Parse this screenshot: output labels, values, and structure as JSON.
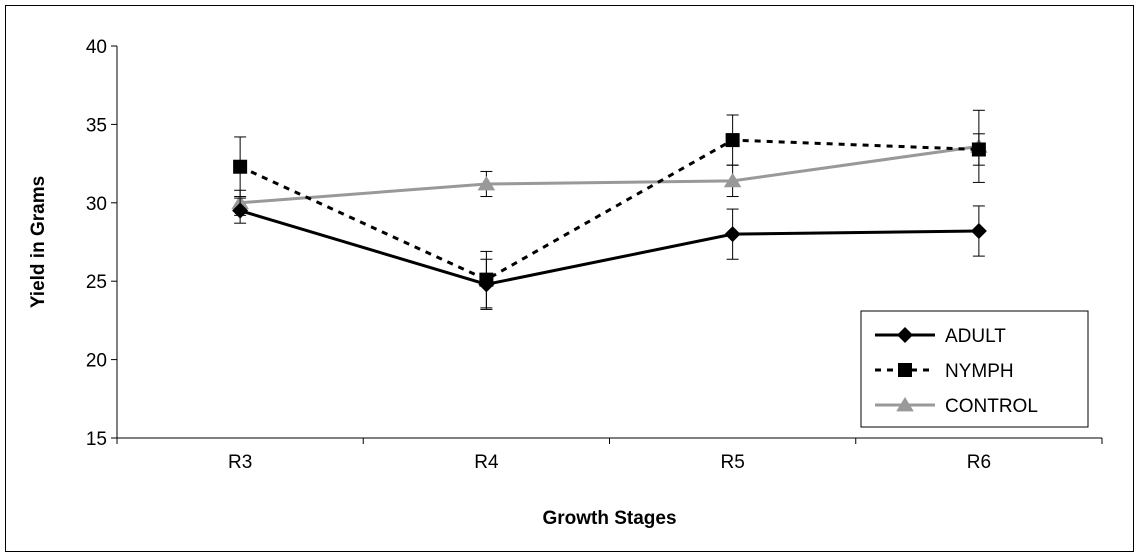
{
  "chart_data": {
    "type": "line",
    "title": "",
    "xlabel": "Growth Stages",
    "ylabel": "Yield in Grams",
    "ylim": [
      15,
      40
    ],
    "yticks": [
      15,
      20,
      25,
      30,
      35,
      40
    ],
    "grid": false,
    "legend_position": "bottom-right",
    "categories": [
      "R3",
      "R4",
      "R5",
      "R6"
    ],
    "series": [
      {
        "name": "ADULT",
        "values": [
          29.5,
          24.8,
          28.0,
          28.2
        ],
        "errors": [
          0.8,
          1.6,
          1.6,
          1.6
        ],
        "color": "#000000",
        "line_style": "solid",
        "marker": "diamond"
      },
      {
        "name": "NYMPH",
        "values": [
          32.3,
          25.1,
          34.0,
          33.4
        ],
        "errors": [
          1.9,
          1.8,
          1.6,
          1.0
        ],
        "color": "#000000",
        "line_style": "dashed",
        "marker": "square"
      },
      {
        "name": "CONTROL",
        "values": [
          30.0,
          31.2,
          31.4,
          33.6
        ],
        "errors": [
          0.8,
          0.8,
          1.0,
          2.3
        ],
        "color": "#999999",
        "line_style": "solid",
        "marker": "triangle"
      }
    ]
  }
}
